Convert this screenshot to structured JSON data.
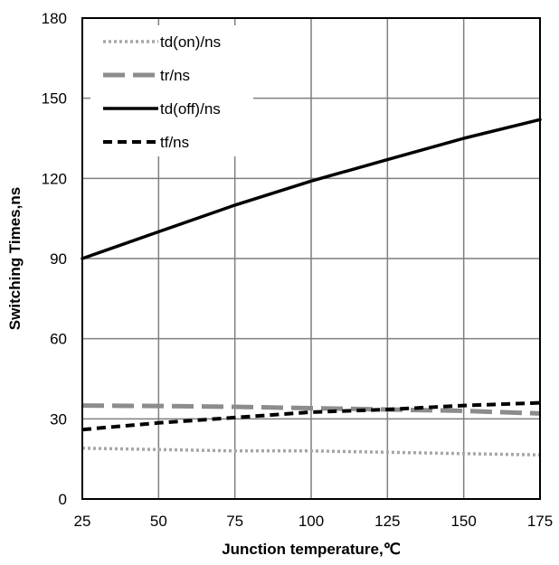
{
  "chart_data": {
    "type": "line",
    "xlabel": "Junction temperature,℃",
    "ylabel": "Switching Times,ns",
    "xlim": [
      25,
      175
    ],
    "ylim": [
      0,
      180
    ],
    "x_ticks": [
      25,
      50,
      75,
      100,
      125,
      150,
      175
    ],
    "y_ticks": [
      0,
      30,
      60,
      90,
      120,
      150,
      180
    ],
    "grid": true,
    "legend_position": "top-left",
    "x": [
      25,
      50,
      75,
      100,
      125,
      150,
      175
    ],
    "series": [
      {
        "name": "td(on)/ns",
        "style": "dotted",
        "color": "#a6a6a6",
        "values": [
          19,
          18.5,
          18,
          18,
          17.5,
          17,
          16.5
        ]
      },
      {
        "name": "tr/ns",
        "style": "long-dashed",
        "color": "#8c8c8c",
        "values": [
          35,
          34.8,
          34.5,
          34,
          33.5,
          33,
          32
        ]
      },
      {
        "name": "td(off)/ns",
        "style": "solid",
        "color": "#000000",
        "values": [
          90,
          100,
          110,
          119,
          127,
          135,
          142
        ]
      },
      {
        "name": "tf/ns",
        "style": "short-dashed",
        "color": "#000000",
        "values": [
          26,
          28.5,
          30.5,
          32.5,
          33.5,
          35,
          36
        ]
      }
    ]
  }
}
